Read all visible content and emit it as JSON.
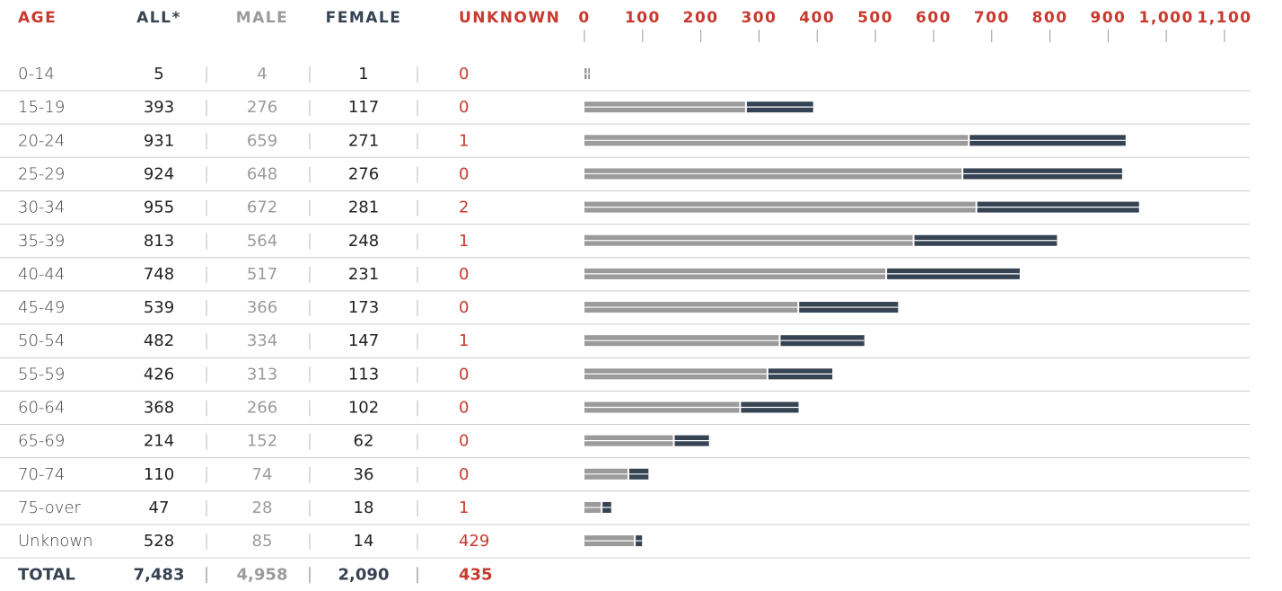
{
  "chart_data": {
    "type": "bar",
    "stacked": true,
    "orientation": "horizontal",
    "category_label": "AGE",
    "total_label": "ALL*",
    "categories": [
      "0-14",
      "15-19",
      "20-24",
      "25-29",
      "30-34",
      "35-39",
      "40-44",
      "45-49",
      "50-54",
      "55-59",
      "60-64",
      "65-69",
      "70-74",
      "75-over",
      "Unknown"
    ],
    "totals": [
      5,
      393,
      931,
      924,
      955,
      813,
      748,
      539,
      482,
      426,
      368,
      214,
      110,
      47,
      528
    ],
    "series": [
      {
        "name": "MALE",
        "color": "#9b9b9b",
        "show_bar": true,
        "values": [
          4,
          276,
          659,
          648,
          672,
          564,
          517,
          366,
          334,
          313,
          266,
          152,
          74,
          28,
          85
        ]
      },
      {
        "name": "FEMALE",
        "color": "#364352",
        "show_bar": true,
        "values": [
          1,
          117,
          271,
          276,
          281,
          248,
          231,
          173,
          147,
          113,
          102,
          62,
          36,
          18,
          14
        ]
      },
      {
        "name": "UNKNOWN",
        "color": "#c8392e",
        "show_bar": false,
        "values": [
          0,
          0,
          1,
          0,
          2,
          1,
          0,
          0,
          1,
          0,
          0,
          0,
          0,
          1,
          429
        ]
      }
    ],
    "total_row": {
      "label": "TOTAL",
      "values": [
        7483,
        4958,
        2090,
        435
      ],
      "value_labels": [
        "7,483",
        "4,958",
        "2,090",
        "435"
      ]
    },
    "xlim": [
      0,
      1100
    ],
    "xticks": [
      0,
      100,
      200,
      300,
      400,
      500,
      600,
      700,
      800,
      900,
      {
        "value": 1000,
        "label": "1,000"
      },
      {
        "value": 1100,
        "label": "1,100"
      }
    ],
    "tick_color": "#c8392e"
  }
}
